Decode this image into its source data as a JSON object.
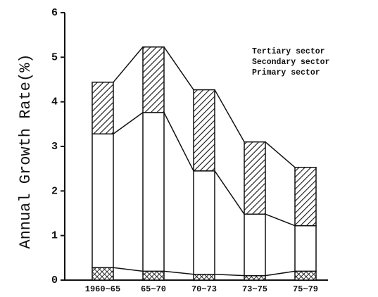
{
  "chart_data": {
    "type": "stacked_bar",
    "y_label": "Annual Growth Rate(%)",
    "categories": [
      "1960~65",
      "65~70",
      "70~73",
      "73~75",
      "75~79"
    ],
    "series": [
      {
        "name": "Primary sector",
        "pattern": "cross",
        "values": [
          0.28,
          0.2,
          0.13,
          0.1,
          0.2
        ]
      },
      {
        "name": "Secondary sector",
        "pattern": "none",
        "values": [
          3.0,
          3.56,
          2.32,
          1.38,
          1.02
        ]
      },
      {
        "name": "Tertiary sector",
        "pattern": "hatch",
        "values": [
          1.16,
          1.47,
          1.82,
          1.62,
          1.31
        ]
      }
    ],
    "ylim": [
      0,
      6
    ],
    "yticks": [
      0,
      1,
      2,
      3,
      4,
      5,
      6
    ],
    "grid": false,
    "legend": "upper right"
  }
}
